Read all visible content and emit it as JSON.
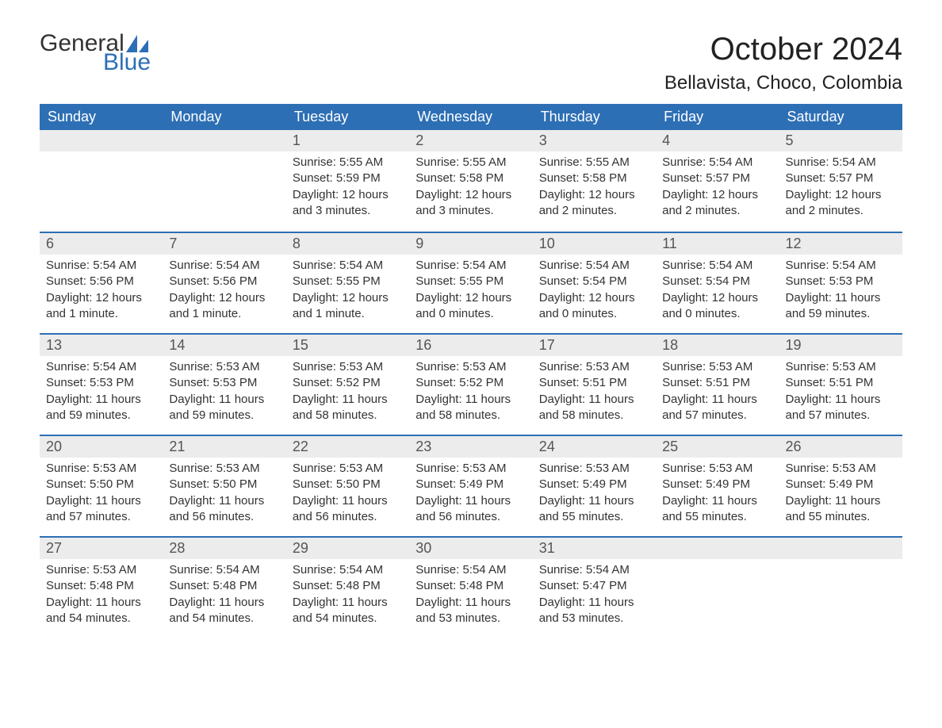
{
  "brand": {
    "part1": "General",
    "part2": "Blue",
    "color": "#2d6fb5"
  },
  "header": {
    "title": "October 2024",
    "location": "Bellavista, Choco, Colombia",
    "title_fontsize": 40,
    "location_fontsize": 24
  },
  "colors": {
    "header_bg": "#2d6fb5",
    "header_text": "#ffffff",
    "daynum_bg": "#ececec",
    "daynum_border": "#2d6fb5",
    "text": "#333333",
    "background": "#ffffff"
  },
  "calendar": {
    "type": "table",
    "columns": [
      "Sunday",
      "Monday",
      "Tuesday",
      "Wednesday",
      "Thursday",
      "Friday",
      "Saturday"
    ],
    "weeks": [
      [
        null,
        null,
        {
          "n": "1",
          "sunrise": "Sunrise: 5:55 AM",
          "sunset": "Sunset: 5:59 PM",
          "daylight": "Daylight: 12 hours and 3 minutes."
        },
        {
          "n": "2",
          "sunrise": "Sunrise: 5:55 AM",
          "sunset": "Sunset: 5:58 PM",
          "daylight": "Daylight: 12 hours and 3 minutes."
        },
        {
          "n": "3",
          "sunrise": "Sunrise: 5:55 AM",
          "sunset": "Sunset: 5:58 PM",
          "daylight": "Daylight: 12 hours and 2 minutes."
        },
        {
          "n": "4",
          "sunrise": "Sunrise: 5:54 AM",
          "sunset": "Sunset: 5:57 PM",
          "daylight": "Daylight: 12 hours and 2 minutes."
        },
        {
          "n": "5",
          "sunrise": "Sunrise: 5:54 AM",
          "sunset": "Sunset: 5:57 PM",
          "daylight": "Daylight: 12 hours and 2 minutes."
        }
      ],
      [
        {
          "n": "6",
          "sunrise": "Sunrise: 5:54 AM",
          "sunset": "Sunset: 5:56 PM",
          "daylight": "Daylight: 12 hours and 1 minute."
        },
        {
          "n": "7",
          "sunrise": "Sunrise: 5:54 AM",
          "sunset": "Sunset: 5:56 PM",
          "daylight": "Daylight: 12 hours and 1 minute."
        },
        {
          "n": "8",
          "sunrise": "Sunrise: 5:54 AM",
          "sunset": "Sunset: 5:55 PM",
          "daylight": "Daylight: 12 hours and 1 minute."
        },
        {
          "n": "9",
          "sunrise": "Sunrise: 5:54 AM",
          "sunset": "Sunset: 5:55 PM",
          "daylight": "Daylight: 12 hours and 0 minutes."
        },
        {
          "n": "10",
          "sunrise": "Sunrise: 5:54 AM",
          "sunset": "Sunset: 5:54 PM",
          "daylight": "Daylight: 12 hours and 0 minutes."
        },
        {
          "n": "11",
          "sunrise": "Sunrise: 5:54 AM",
          "sunset": "Sunset: 5:54 PM",
          "daylight": "Daylight: 12 hours and 0 minutes."
        },
        {
          "n": "12",
          "sunrise": "Sunrise: 5:54 AM",
          "sunset": "Sunset: 5:53 PM",
          "daylight": "Daylight: 11 hours and 59 minutes."
        }
      ],
      [
        {
          "n": "13",
          "sunrise": "Sunrise: 5:54 AM",
          "sunset": "Sunset: 5:53 PM",
          "daylight": "Daylight: 11 hours and 59 minutes."
        },
        {
          "n": "14",
          "sunrise": "Sunrise: 5:53 AM",
          "sunset": "Sunset: 5:53 PM",
          "daylight": "Daylight: 11 hours and 59 minutes."
        },
        {
          "n": "15",
          "sunrise": "Sunrise: 5:53 AM",
          "sunset": "Sunset: 5:52 PM",
          "daylight": "Daylight: 11 hours and 58 minutes."
        },
        {
          "n": "16",
          "sunrise": "Sunrise: 5:53 AM",
          "sunset": "Sunset: 5:52 PM",
          "daylight": "Daylight: 11 hours and 58 minutes."
        },
        {
          "n": "17",
          "sunrise": "Sunrise: 5:53 AM",
          "sunset": "Sunset: 5:51 PM",
          "daylight": "Daylight: 11 hours and 58 minutes."
        },
        {
          "n": "18",
          "sunrise": "Sunrise: 5:53 AM",
          "sunset": "Sunset: 5:51 PM",
          "daylight": "Daylight: 11 hours and 57 minutes."
        },
        {
          "n": "19",
          "sunrise": "Sunrise: 5:53 AM",
          "sunset": "Sunset: 5:51 PM",
          "daylight": "Daylight: 11 hours and 57 minutes."
        }
      ],
      [
        {
          "n": "20",
          "sunrise": "Sunrise: 5:53 AM",
          "sunset": "Sunset: 5:50 PM",
          "daylight": "Daylight: 11 hours and 57 minutes."
        },
        {
          "n": "21",
          "sunrise": "Sunrise: 5:53 AM",
          "sunset": "Sunset: 5:50 PM",
          "daylight": "Daylight: 11 hours and 56 minutes."
        },
        {
          "n": "22",
          "sunrise": "Sunrise: 5:53 AM",
          "sunset": "Sunset: 5:50 PM",
          "daylight": "Daylight: 11 hours and 56 minutes."
        },
        {
          "n": "23",
          "sunrise": "Sunrise: 5:53 AM",
          "sunset": "Sunset: 5:49 PM",
          "daylight": "Daylight: 11 hours and 56 minutes."
        },
        {
          "n": "24",
          "sunrise": "Sunrise: 5:53 AM",
          "sunset": "Sunset: 5:49 PM",
          "daylight": "Daylight: 11 hours and 55 minutes."
        },
        {
          "n": "25",
          "sunrise": "Sunrise: 5:53 AM",
          "sunset": "Sunset: 5:49 PM",
          "daylight": "Daylight: 11 hours and 55 minutes."
        },
        {
          "n": "26",
          "sunrise": "Sunrise: 5:53 AM",
          "sunset": "Sunset: 5:49 PM",
          "daylight": "Daylight: 11 hours and 55 minutes."
        }
      ],
      [
        {
          "n": "27",
          "sunrise": "Sunrise: 5:53 AM",
          "sunset": "Sunset: 5:48 PM",
          "daylight": "Daylight: 11 hours and 54 minutes."
        },
        {
          "n": "28",
          "sunrise": "Sunrise: 5:54 AM",
          "sunset": "Sunset: 5:48 PM",
          "daylight": "Daylight: 11 hours and 54 minutes."
        },
        {
          "n": "29",
          "sunrise": "Sunrise: 5:54 AM",
          "sunset": "Sunset: 5:48 PM",
          "daylight": "Daylight: 11 hours and 54 minutes."
        },
        {
          "n": "30",
          "sunrise": "Sunrise: 5:54 AM",
          "sunset": "Sunset: 5:48 PM",
          "daylight": "Daylight: 11 hours and 53 minutes."
        },
        {
          "n": "31",
          "sunrise": "Sunrise: 5:54 AM",
          "sunset": "Sunset: 5:47 PM",
          "daylight": "Daylight: 11 hours and 53 minutes."
        },
        null,
        null
      ]
    ]
  }
}
